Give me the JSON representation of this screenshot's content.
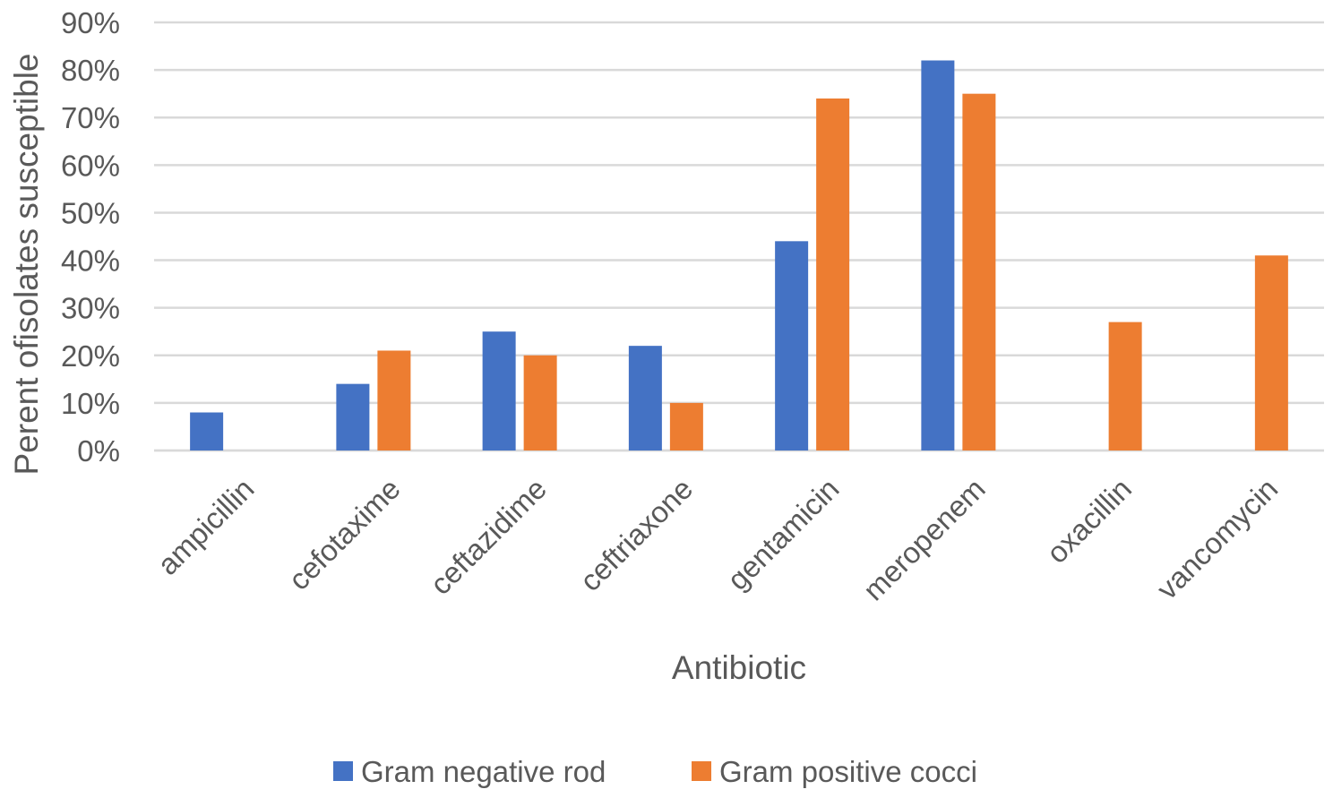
{
  "chart_data": {
    "type": "bar",
    "title": "",
    "xlabel": "Antibiotic",
    "ylabel": "Perent ofisolates susceptible",
    "ylim": [
      0,
      90
    ],
    "yticks": [
      "0%",
      "10%",
      "20%",
      "30%",
      "40%",
      "50%",
      "60%",
      "70%",
      "80%",
      "90%"
    ],
    "ytick_values": [
      0,
      10,
      20,
      30,
      40,
      50,
      60,
      70,
      80,
      90
    ],
    "grid": true,
    "legend_position": "bottom",
    "categories": [
      "ampicillin",
      "cefotaxime",
      "ceftazidime",
      "ceftriaxone",
      "gentamicin",
      "meropenem",
      "oxacillin",
      "vancomycin"
    ],
    "series": [
      {
        "name": "Gram negative rod",
        "color": "#4472c4",
        "values": [
          8,
          14,
          25,
          22,
          44,
          82,
          0,
          0
        ]
      },
      {
        "name": "Gram positive cocci",
        "color": "#ed7d31",
        "values": [
          0,
          21,
          20,
          10,
          74,
          75,
          27,
          41
        ]
      }
    ]
  }
}
